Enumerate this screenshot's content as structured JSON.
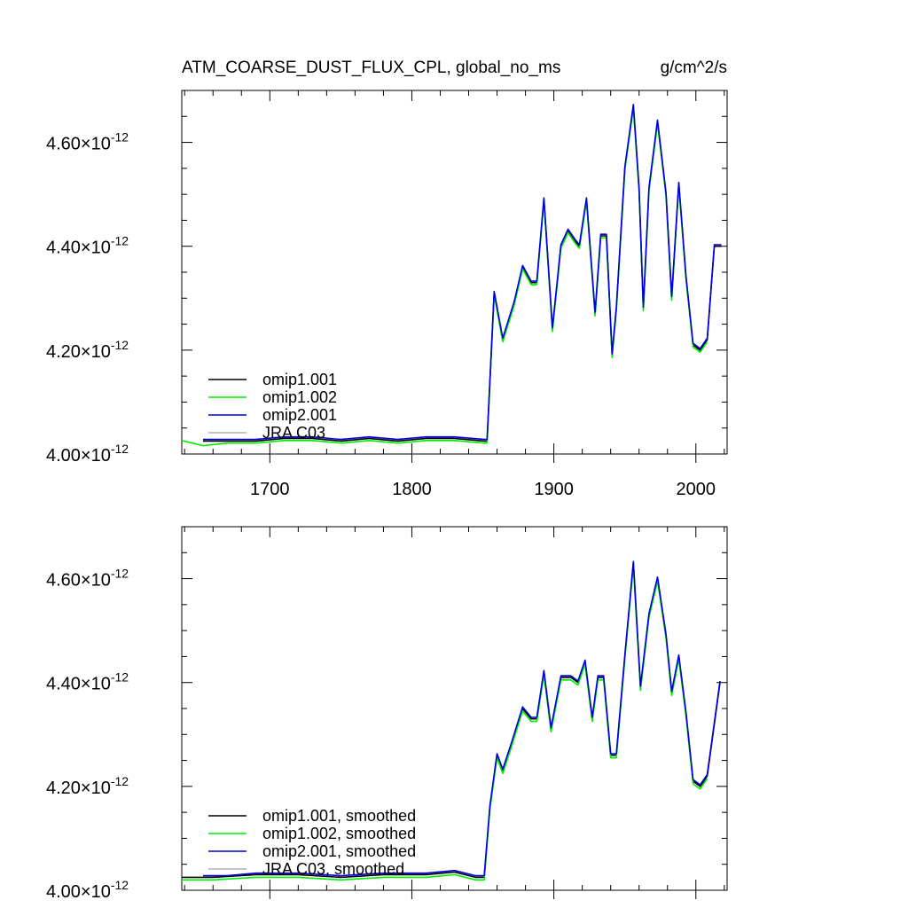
{
  "chart_data": [
    {
      "type": "line",
      "title_left": "ATM_COARSE_DUST_FLUX_CPL, global_no_ms",
      "title_right": "g/cm^2/s",
      "xlabel": "",
      "ylabel": "",
      "xlim": [
        1638,
        2022
      ],
      "ylim": [
        4.0,
        4.7
      ],
      "y_exponent": "-12",
      "x_ticks": [
        1700,
        1800,
        1900,
        2000
      ],
      "x_tick_labels": [
        "1700",
        "1800",
        "1900",
        "2000"
      ],
      "y_ticks": [
        4.0,
        4.2,
        4.4,
        4.6
      ],
      "y_tick_labels": [
        "4.00",
        "4.20",
        "4.40",
        "4.60"
      ],
      "legend_position": "bottom-left",
      "grid": false,
      "series": [
        {
          "name": "omip1.001",
          "color": "#000000",
          "offset": 0,
          "x": [
            1653,
            1670,
            1690,
            1710,
            1730,
            1750,
            1770,
            1790,
            1810,
            1830,
            1851,
            1853,
            1858,
            1864,
            1872,
            1878,
            1884,
            1888,
            1893,
            1899,
            1905,
            1910,
            1915,
            1918,
            1923,
            1929,
            1933,
            1937,
            1941,
            1944,
            1950,
            1956,
            1960,
            1963,
            1967,
            1973,
            1979,
            1983,
            1988,
            1993,
            1998,
            2003,
            2008,
            2013,
            2018
          ],
          "y": [
            4.025,
            4.025,
            4.025,
            4.03,
            4.03,
            4.025,
            4.03,
            4.025,
            4.03,
            4.03,
            4.025,
            4.025,
            4.31,
            4.22,
            4.29,
            4.36,
            4.33,
            4.33,
            4.49,
            4.24,
            4.4,
            4.43,
            4.41,
            4.4,
            4.49,
            4.27,
            4.42,
            4.42,
            4.19,
            4.28,
            4.55,
            4.67,
            4.51,
            4.28,
            4.51,
            4.64,
            4.5,
            4.3,
            4.52,
            4.34,
            4.21,
            4.2,
            4.22,
            4.4,
            4.4
          ]
        },
        {
          "name": "omip1.002",
          "color": "#00ee00",
          "offset": -0.004,
          "x": [
            1638,
            1653,
            1670,
            1690,
            1710,
            1730,
            1750,
            1770,
            1790,
            1810,
            1830,
            1851,
            1853,
            1858,
            1864,
            1872,
            1878,
            1884,
            1888,
            1893,
            1899,
            1905,
            1910,
            1915,
            1918,
            1923,
            1929,
            1933,
            1937,
            1941,
            1944,
            1950,
            1956,
            1960,
            1963,
            1967,
            1973,
            1979,
            1983,
            1988,
            1993,
            1998,
            2003,
            2008
          ],
          "y": [
            4.03,
            4.02,
            4.025,
            4.025,
            4.03,
            4.03,
            4.025,
            4.03,
            4.025,
            4.03,
            4.03,
            4.025,
            4.025,
            4.31,
            4.22,
            4.29,
            4.36,
            4.33,
            4.33,
            4.49,
            4.24,
            4.4,
            4.43,
            4.41,
            4.4,
            4.49,
            4.27,
            4.42,
            4.42,
            4.19,
            4.28,
            4.55,
            4.67,
            4.51,
            4.28,
            4.51,
            4.64,
            4.5,
            4.3,
            4.52,
            4.34,
            4.21,
            4.2,
            4.22
          ]
        },
        {
          "name": "omip2.001",
          "color": "#0000dd",
          "offset": 0.003,
          "x": [
            1653,
            1670,
            1690,
            1710,
            1730,
            1750,
            1770,
            1790,
            1810,
            1830,
            1851,
            1853,
            1858,
            1864,
            1872,
            1878,
            1884,
            1888,
            1893,
            1899,
            1905,
            1910,
            1915,
            1918,
            1923,
            1929,
            1933,
            1937,
            1941,
            1944,
            1950,
            1956,
            1960,
            1963,
            1967,
            1973,
            1979,
            1983,
            1988,
            1993,
            1998,
            2003,
            2008,
            2013,
            2018
          ],
          "y": [
            4.025,
            4.025,
            4.025,
            4.03,
            4.03,
            4.025,
            4.03,
            4.025,
            4.03,
            4.03,
            4.025,
            4.025,
            4.31,
            4.22,
            4.29,
            4.36,
            4.33,
            4.33,
            4.49,
            4.24,
            4.4,
            4.43,
            4.41,
            4.4,
            4.49,
            4.27,
            4.42,
            4.42,
            4.19,
            4.28,
            4.55,
            4.67,
            4.51,
            4.28,
            4.51,
            4.64,
            4.5,
            4.3,
            4.52,
            4.34,
            4.21,
            4.2,
            4.22,
            4.4,
            4.4
          ]
        },
        {
          "name": "JRA C03",
          "color": "#b0b0b0",
          "offset": 0,
          "x": [],
          "y": []
        }
      ]
    },
    {
      "type": "line",
      "title_left": "",
      "title_right": "",
      "xlabel": "",
      "ylabel": "",
      "xlim": [
        1638,
        2022
      ],
      "ylim": [
        4.0,
        4.7
      ],
      "y_exponent": "-12",
      "x_ticks": [
        1700,
        1800,
        1900,
        2000
      ],
      "x_tick_labels": [],
      "y_ticks": [
        4.0,
        4.2,
        4.4,
        4.6
      ],
      "y_tick_labels": [
        "4.00",
        "4.20",
        "4.40",
        "4.60"
      ],
      "legend_position": "bottom-left",
      "grid": false,
      "series": [
        {
          "name": "omip1.001, smoothed",
          "color": "#000000",
          "offset": 0,
          "x": [
            1638,
            1660,
            1690,
            1720,
            1750,
            1780,
            1810,
            1830,
            1845,
            1851,
            1855,
            1860,
            1864,
            1870,
            1878,
            1884,
            1888,
            1893,
            1898,
            1905,
            1912,
            1917,
            1922,
            1927,
            1931,
            1935,
            1940,
            1944,
            1950,
            1956,
            1961,
            1967,
            1973,
            1979,
            1983,
            1988,
            1993,
            1998,
            2003,
            2008,
            2017
          ],
          "y": [
            4.025,
            4.025,
            4.03,
            4.03,
            4.025,
            4.03,
            4.03,
            4.035,
            4.025,
            4.025,
            4.16,
            4.26,
            4.23,
            4.28,
            4.35,
            4.33,
            4.33,
            4.42,
            4.31,
            4.41,
            4.41,
            4.4,
            4.44,
            4.33,
            4.41,
            4.41,
            4.26,
            4.26,
            4.45,
            4.63,
            4.39,
            4.53,
            4.6,
            4.49,
            4.38,
            4.45,
            4.34,
            4.21,
            4.2,
            4.22,
            4.4
          ]
        },
        {
          "name": "omip1.002, smoothed",
          "color": "#00ee00",
          "offset": -0.005,
          "x": [
            1638,
            1660,
            1690,
            1720,
            1750,
            1780,
            1810,
            1830,
            1845,
            1851,
            1855,
            1860,
            1864,
            1870,
            1878,
            1884,
            1888,
            1893,
            1898,
            1905,
            1912,
            1917,
            1922,
            1927,
            1931,
            1935,
            1940,
            1944,
            1950,
            1956,
            1961,
            1967,
            1973,
            1979,
            1983,
            1988,
            1993,
            1998,
            2003,
            2008
          ],
          "y": [
            4.025,
            4.025,
            4.03,
            4.03,
            4.025,
            4.03,
            4.03,
            4.035,
            4.025,
            4.025,
            4.16,
            4.26,
            4.23,
            4.28,
            4.35,
            4.33,
            4.33,
            4.42,
            4.31,
            4.41,
            4.41,
            4.4,
            4.44,
            4.33,
            4.41,
            4.41,
            4.26,
            4.26,
            4.45,
            4.63,
            4.39,
            4.53,
            4.6,
            4.49,
            4.38,
            4.45,
            4.34,
            4.21,
            4.2,
            4.22
          ]
        },
        {
          "name": "omip2.001, smoothed",
          "color": "#0000dd",
          "offset": 0.003,
          "x": [
            1653,
            1670,
            1690,
            1720,
            1750,
            1780,
            1810,
            1830,
            1845,
            1851,
            1855,
            1860,
            1864,
            1870,
            1878,
            1884,
            1888,
            1893,
            1898,
            1905,
            1912,
            1917,
            1922,
            1927,
            1931,
            1935,
            1940,
            1944,
            1950,
            1956,
            1961,
            1967,
            1973,
            1979,
            1983,
            1988,
            1993,
            1998,
            2003,
            2008,
            2017
          ],
          "y": [
            4.025,
            4.025,
            4.03,
            4.03,
            4.025,
            4.03,
            4.03,
            4.035,
            4.025,
            4.025,
            4.16,
            4.26,
            4.23,
            4.28,
            4.35,
            4.33,
            4.33,
            4.42,
            4.31,
            4.41,
            4.41,
            4.4,
            4.44,
            4.33,
            4.41,
            4.41,
            4.26,
            4.26,
            4.45,
            4.63,
            4.39,
            4.53,
            4.6,
            4.49,
            4.38,
            4.45,
            4.34,
            4.21,
            4.2,
            4.22,
            4.4
          ]
        },
        {
          "name": "JRA C03, smoothed",
          "color": "#b0b0b0",
          "offset": 0,
          "x": [],
          "y": []
        }
      ]
    }
  ]
}
